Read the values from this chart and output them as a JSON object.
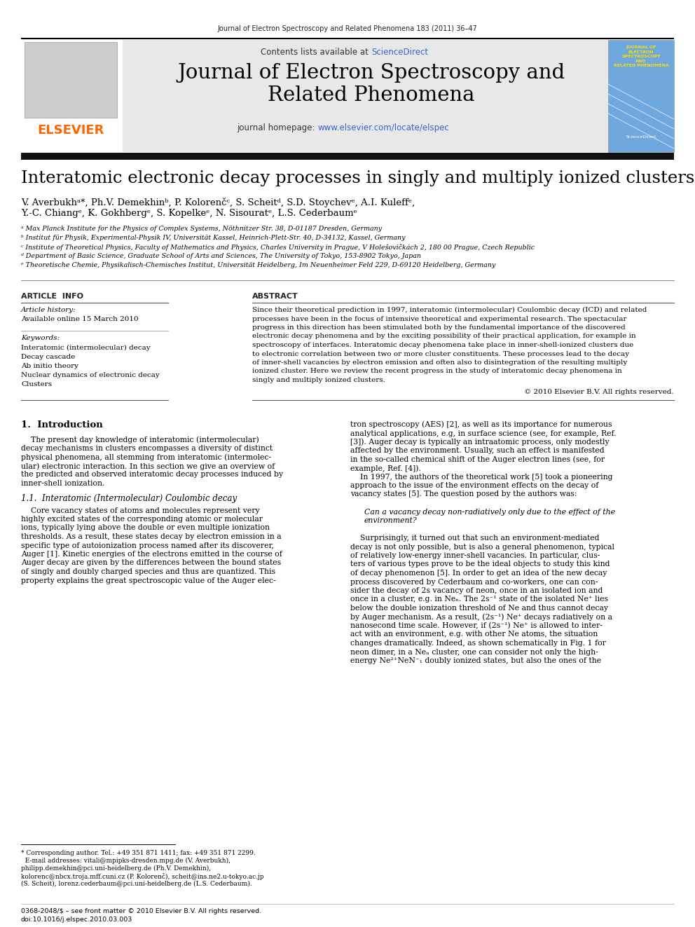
{
  "page_bg": "#ffffff",
  "top_journal_ref": "Journal of Electron Spectroscopy and Related Phenomena 183 (2011) 36–47",
  "header_bg": "#e8e8e8",
  "elsevier_color": "#FF6600",
  "header_sciencedirect_color": "#3366cc",
  "header_homepage_color": "#3366cc",
  "article_title": "Interatomic electronic decay processes in singly and multiply ionized clusters",
  "authors_line1": "V. Averbukhᵃ*, Ph.V. Demekhinᵇ, P. Kolorenčᶜ, S. Scheitᵈ, S.D. Stoychevᵉ, A.I. Kuleffᵉ,",
  "authors_line2": "Y.-C. Chiangᵉ, K. Gokhbergᵉ, S. Kopelkeᵉ, N. Sisouratᵉ, L.S. Cederbaumᵉ",
  "affil_a": "ᵃ Max Planck Institute for the Physics of Complex Systems, Nöthnitzer Str. 38, D-01187 Dresden, Germany",
  "affil_b": "ᵇ Institut für Physik, Experimental-Physik IV, Universität Kassel, Heinrich-Plett-Str. 40, D-34132, Kassel, Germany",
  "affil_c": "ᶜ Institute of Theoretical Physics, Faculty of Mathematics and Physics, Charles University in Prague, V Holešovičkách 2, 180 00 Prague, Czech Republic",
  "affil_d": "ᵈ Department of Basic Science, Graduate School of Arts and Sciences, The University of Tokyo, 153-8902 Tokyo, Japan",
  "affil_e": "ᵉ Theoretische Chemie, Physikalisch-Chemisches Institut, Universität Heidelberg, Im Neuenheimer Feld 229, D-69120 Heidelberg, Germany",
  "article_info_title": "ARTICLE  INFO",
  "article_history_label": "Article history:",
  "article_history_value": "Available online 15 March 2010",
  "keywords_label": "Keywords:",
  "kw1": "Interatomic (intermolecular) decay",
  "kw2": "Decay cascade",
  "kw3": "Ab initio theory",
  "kw4": "Nuclear dynamics of electronic decay",
  "kw5": "Clusters",
  "abstract_title": "ABSTRACT",
  "abstract_lines": [
    "Since their theoretical prediction in 1997, interatomic (intermolecular) Coulombic decay (ICD) and related",
    "processes have been in the focus of intensive theoretical and experimental research. The spectacular",
    "progress in this direction has been stimulated both by the fundamental importance of the discovered",
    "electronic decay phenomena and by the exciting possibility of their practical application, for example in",
    "spectroscopy of interfaces. Interatomic decay phenomena take place in inner-shell-ionized clusters due",
    "to electronic correlation between two or more cluster constituents. These processes lead to the decay",
    "of inner-shell vacancies by electron emission and often also to disintegration of the resulting multiply",
    "ionized cluster. Here we review the recent progress in the study of interatomic decay phenomena in",
    "singly and multiply ionized clusters."
  ],
  "copyright": "© 2010 Elsevier B.V. All rights reserved.",
  "sec1_title": "1.  Introduction",
  "intro_lines": [
    "    The present day knowledge of interatomic (intermolecular)",
    "decay mechanisms in clusters encompasses a diversity of distinct",
    "physical phenomena, all stemming from interatomic (intermolec-",
    "ular) electronic interaction. In this section we give an overview of",
    "the predicted and observed interatomic decay processes induced by",
    "inner-shell ionization."
  ],
  "sub1_title": "1.1.  Interatomic (Intermolecular) Coulombic decay",
  "sub1_lines": [
    "    Core vacancy states of atoms and molecules represent very",
    "highly excited states of the corresponding atomic or molecular",
    "ions, typically lying above the double or even multiple ionization",
    "thresholds. As a result, these states decay by electron emission in a",
    "specific type of autoionization process named after its discoverer,",
    "Auger [1]. Kinetic energies of the electrons emitted in the course of",
    "Auger decay are given by the differences between the bound states",
    "of singly and doubly charged species and thus are quantized. This",
    "property explains the great spectroscopic value of the Auger elec-"
  ],
  "right_col_lines": [
    "tron spectroscopy (AES) [2], as well as its importance for numerous",
    "analytical applications, e.g, in surface science (see, for example, Ref.",
    "[3]). Auger decay is typically an intraatomic process, only modestly",
    "affected by the environment. Usually, such an effect is manifested",
    "in the so-called chemical shift of the Auger electron lines (see, for",
    "example, Ref. [4]).",
    "    In 1997, the authors of the theoretical work [5] took a pioneering",
    "approach to the issue of the environment effects on the decay of",
    "vacancy states [5]. The question posed by the authors was:",
    "",
    "Can a vacancy decay non-radiatively only due to the effect of the",
    "environment?",
    "",
    "    Surprisingly, it turned out that such an environment-mediated",
    "decay is not only possible, but is also a general phenomenon, typical",
    "of relatively low-energy inner-shell vacancies. In particular, clus-",
    "ters of various types prove to be the ideal objects to study this kind",
    "of decay phenomenon [5]. In order to get an idea of the new decay",
    "process discovered by Cederbaum and co-workers, one can con-",
    "sider the decay of 2s vacancy of neon, once in an isolated ion and",
    "once in a cluster, e.g. in Neₙ. The 2s⁻¹ state of the isolated Ne⁺ lies",
    "below the double ionization threshold of Ne and thus cannot decay",
    "by Auger mechanism. As a result, (2s⁻¹) Ne⁺ decays radiatively on a",
    "nanosecond time scale. However, if (2s⁻¹) Ne⁺ is allowed to inter-",
    "act with an environment, e.g. with other Ne atoms, the situation",
    "changes dramatically. Indeed, as shown schematically in Fig. 1 for",
    "neon dimer, in a Neₙ cluster, one can consider not only the high-",
    "energy Ne²⁺NeN⁻₁ doubly ionized states, but also the ones of the"
  ],
  "footnote_lines": [
    "* Corresponding author. Tel.: +49 351 871 1411; fax: +49 351 871 2299.",
    "  E-mail addresses: vitali@mpipks-dresden.mpg.de (V. Averbukh),",
    "philipp.demekhin@pci.uni-heidelberg.de (Ph.V. Demekhin),",
    "kolorenc@nbcx.troja.mff.cuni.cz (P. Kolorenč), scheit@ins.ne2.u-tokyo.ac.jp",
    "(S. Scheit), lorenz.cederbaum@pci.uni-heidelberg.de (L.S. Cederbaum)."
  ],
  "footer1": "0368-2048/$ – see front matter © 2010 Elsevier B.V. All rights reserved.",
  "footer2": "doi:10.1016/j.elspec.2010.03.003"
}
